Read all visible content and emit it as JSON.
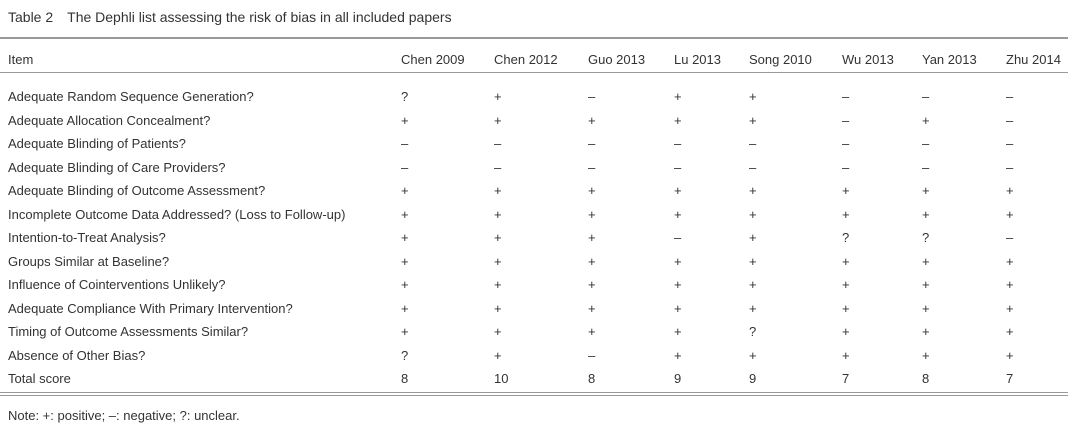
{
  "header": {
    "title": "Table 2 The Dephli list assessing the risk of bias in all included papers"
  },
  "table": {
    "columns": [
      "Item",
      "Chen 2009",
      "Chen 2012",
      "Guo 2013",
      "Lu 2013",
      "Song 2010",
      "Wu 2013",
      "Yan 2013",
      "Zhu 2014"
    ],
    "rows": [
      [
        "Adequate Random Sequence Generation?",
        "?",
        "+",
        "–",
        "+",
        "+",
        "–",
        "–",
        "–"
      ],
      [
        "Adequate Allocation Concealment?",
        "+",
        "+",
        "+",
        "+",
        "+",
        "–",
        "+",
        "–"
      ],
      [
        "Adequate Blinding of Patients?",
        "–",
        "–",
        "–",
        "–",
        "–",
        "–",
        "–",
        "–"
      ],
      [
        "Adequate Blinding of Care Providers?",
        "–",
        "–",
        "–",
        "–",
        "–",
        "–",
        "–",
        "–"
      ],
      [
        "Adequate Blinding of Outcome Assessment?",
        "+",
        "+",
        "+",
        "+",
        "+",
        "+",
        "+",
        "+"
      ],
      [
        "Incomplete Outcome Data Addressed? (Loss to Follow-up)",
        "+",
        "+",
        "+",
        "+",
        "+",
        "+",
        "+",
        "+"
      ],
      [
        "Intention-to-Treat Analysis?",
        "+",
        "+",
        "+",
        "–",
        "+",
        "?",
        "?",
        "–"
      ],
      [
        "Groups Similar at Baseline?",
        "+",
        "+",
        "+",
        "+",
        "+",
        "+",
        "+",
        "+"
      ],
      [
        "Influence of Cointerventions Unlikely?",
        "+",
        "+",
        "+",
        "+",
        "+",
        "+",
        "+",
        "+"
      ],
      [
        "Adequate Compliance With Primary Intervention?",
        "+",
        "+",
        "+",
        "+",
        "+",
        "+",
        "+",
        "+"
      ],
      [
        "Timing of Outcome Assessments Similar?",
        "+",
        "+",
        "+",
        "+",
        "?",
        "+",
        "+",
        "+"
      ],
      [
        "Absence of Other Bias?",
        "?",
        "+",
        "–",
        "+",
        "+",
        "+",
        "+",
        "+"
      ],
      [
        "Total score",
        8,
        10,
        8,
        9,
        9,
        7,
        8,
        7
      ]
    ]
  },
  "footer": {
    "note": "Note: +: positive; –: negative; ?: unclear."
  }
}
